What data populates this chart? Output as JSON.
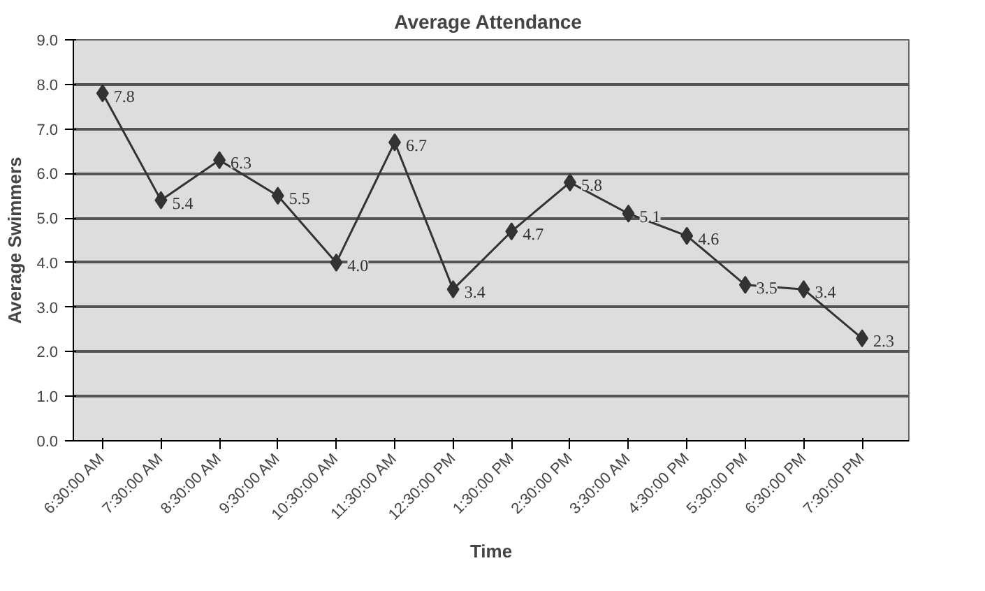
{
  "chart_data": {
    "type": "line",
    "title": "Average  Attendance",
    "xlabel": "Time",
    "ylabel": "Average Swimmers",
    "categories": [
      "6:30:00 AM",
      "7:30:00 AM",
      "8:30:00 AM",
      "9:30:00 AM",
      "10:30:00 AM",
      "11:30:00 AM",
      "12:30:00 PM",
      "1:30:00 PM",
      "2:30:00 PM",
      "3:30:00 AM",
      "4:30:00 PM",
      "5:30:00 PM",
      "6:30:00 PM",
      "7:30:00 PM"
    ],
    "series": [
      {
        "color": "#333333",
        "values": [
          7.8,
          5.4,
          6.3,
          5.5,
          4.0,
          6.7,
          3.4,
          4.7,
          5.8,
          5.1,
          4.6,
          3.5,
          3.4,
          2.3
        ],
        "value_labels": [
          "7.8",
          "5.4",
          "6.3",
          "5.5",
          "4.0",
          "6.7",
          "3.4",
          "4.7",
          "5.8",
          "5.1",
          "4.6",
          "3.5",
          "3.4",
          "2.3"
        ]
      }
    ],
    "ylim": [
      0,
      9
    ],
    "yticks": [
      {
        "value": 0,
        "label": "0.0"
      },
      {
        "value": 1,
        "label": "1.0"
      },
      {
        "value": 2,
        "label": "2.0"
      },
      {
        "value": 3,
        "label": "3.0"
      },
      {
        "value": 4,
        "label": "4.0"
      },
      {
        "value": 5,
        "label": "5.0"
      },
      {
        "value": 6,
        "label": "6.0"
      },
      {
        "value": 7,
        "label": "7.0"
      },
      {
        "value": 8,
        "label": "8.0"
      },
      {
        "value": 9,
        "label": "9.0"
      }
    ],
    "grid": "y",
    "marker": "diamond",
    "line_style": "solid"
  }
}
